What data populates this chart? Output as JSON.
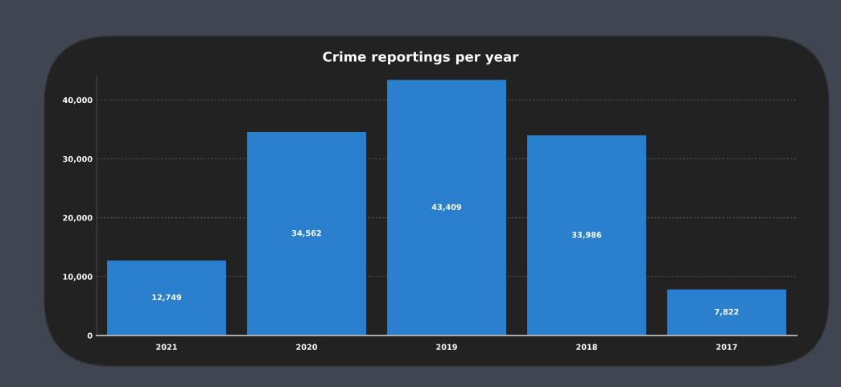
{
  "chart_data": {
    "type": "bar",
    "title": "Crime reportings per year",
    "categories": [
      "2021",
      "2020",
      "2019",
      "2018",
      "2017"
    ],
    "values": [
      12749,
      34562,
      43409,
      33986,
      7822
    ],
    "value_labels": [
      "12,749",
      "34,562",
      "43,409",
      "33,986",
      "7,822"
    ],
    "color": "#2a80cc",
    "ylim": [
      0,
      44000
    ],
    "yticks": [
      0,
      {
        "value": 10000,
        "label": "10,000"
      },
      {
        "value": 20000,
        "label": "20,000"
      },
      {
        "value": 30000,
        "label": "30,000"
      },
      {
        "value": 40000,
        "label": "40,000"
      }
    ],
    "grid": "y"
  }
}
